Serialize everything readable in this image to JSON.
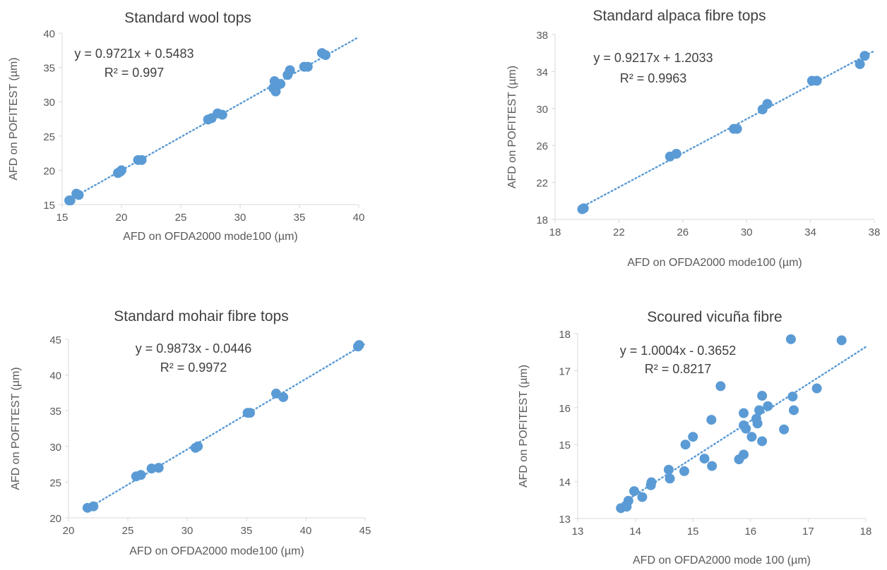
{
  "colors": {
    "point": "#5b9bd5",
    "trendline": "#5b9bd5",
    "axis": "#d9d9d9",
    "text": "#595959",
    "title": "#404040"
  },
  "chart_data": [
    {
      "type": "scatter",
      "title": "Standard wool tops",
      "xlabel": "AFD on OFDA2000 mode100 (µm)",
      "ylabel": "AFD on POFITEST (µm)",
      "xlim": [
        15,
        40
      ],
      "ylim": [
        15,
        40
      ],
      "xticks": [
        15,
        20,
        25,
        30,
        35,
        40
      ],
      "yticks": [
        15,
        20,
        25,
        30,
        35,
        40
      ],
      "grid": false,
      "trendline": {
        "slope": 0.9721,
        "intercept": 0.5483,
        "style": "dotted"
      },
      "equation": "y = 0.9721x + 0.5483",
      "r2": "R² = 0.997",
      "points": [
        [
          15.6,
          15.6
        ],
        [
          15.7,
          15.6
        ],
        [
          16.2,
          16.6
        ],
        [
          16.4,
          16.4
        ],
        [
          19.7,
          19.6
        ],
        [
          19.9,
          19.8
        ],
        [
          20.0,
          20.0
        ],
        [
          21.4,
          21.5
        ],
        [
          21.7,
          21.5
        ],
        [
          27.3,
          27.4
        ],
        [
          27.6,
          27.6
        ],
        [
          28.1,
          28.3
        ],
        [
          28.5,
          28.1
        ],
        [
          32.8,
          32.0
        ],
        [
          32.9,
          33.0
        ],
        [
          33.0,
          31.5
        ],
        [
          33.1,
          32.3
        ],
        [
          33.4,
          32.6
        ],
        [
          34.0,
          33.9
        ],
        [
          34.2,
          34.6
        ],
        [
          35.4,
          35.1
        ],
        [
          35.7,
          35.1
        ],
        [
          36.9,
          37.1
        ],
        [
          37.2,
          36.8
        ]
      ]
    },
    {
      "type": "scatter",
      "title": "Standard alpaca fibre tops",
      "xlabel": "AFD on OFDA2000 mode100 (µm)",
      "ylabel": "AFD on POFITEST (µm)",
      "xlim": [
        18,
        38
      ],
      "ylim": [
        18,
        38
      ],
      "xticks": [
        18,
        22,
        26,
        30,
        34,
        38
      ],
      "yticks": [
        18,
        22,
        26,
        30,
        34,
        38
      ],
      "grid": false,
      "trendline": {
        "slope": 0.9217,
        "intercept": 1.2033,
        "style": "dotted"
      },
      "equation": "y = 0.9217x + 1.2033",
      "r2": "R² = 0.9963",
      "points": [
        [
          19.7,
          19.1
        ],
        [
          19.8,
          19.2
        ],
        [
          25.2,
          24.8
        ],
        [
          25.6,
          25.1
        ],
        [
          29.2,
          27.8
        ],
        [
          29.4,
          27.8
        ],
        [
          31.0,
          29.9
        ],
        [
          31.3,
          30.5
        ],
        [
          34.1,
          33.0
        ],
        [
          34.4,
          33.0
        ],
        [
          37.1,
          34.8
        ],
        [
          37.4,
          35.7
        ]
      ]
    },
    {
      "type": "scatter",
      "title": "Standard mohair fibre tops",
      "xlabel": "AFD on OFDA2000 mode100 (µm)",
      "ylabel": "AFD on POFITEST (µm)",
      "xlim": [
        20,
        45
      ],
      "ylim": [
        20,
        45
      ],
      "xticks": [
        20,
        25,
        30,
        35,
        40,
        45
      ],
      "yticks": [
        20,
        25,
        30,
        35,
        40,
        45
      ],
      "grid": false,
      "trendline": {
        "slope": 0.9873,
        "intercept": -0.0446,
        "style": "dotted"
      },
      "equation": "y = 0.9873x - 0.0446",
      "r2": "R² = 0.9972",
      "points": [
        [
          21.6,
          21.4
        ],
        [
          22.1,
          21.6
        ],
        [
          25.7,
          25.8
        ],
        [
          26.1,
          26.0
        ],
        [
          27.0,
          26.9
        ],
        [
          27.6,
          27.0
        ],
        [
          30.7,
          29.8
        ],
        [
          30.9,
          30.0
        ],
        [
          35.1,
          34.7
        ],
        [
          35.3,
          34.7
        ],
        [
          37.5,
          37.4
        ],
        [
          38.1,
          36.9
        ],
        [
          44.4,
          44.0
        ],
        [
          44.5,
          44.2
        ]
      ]
    },
    {
      "type": "scatter",
      "title": "Scoured vicuña fibre",
      "xlabel": "AFD on OFDA2000 mode 100 (µm)",
      "ylabel": "AFD on POFITEST (µm)",
      "xlim": [
        13,
        18
      ],
      "ylim": [
        13,
        18
      ],
      "xticks": [
        13,
        14,
        15,
        16,
        17,
        18
      ],
      "yticks": [
        13,
        14,
        15,
        16,
        17,
        18
      ],
      "grid": false,
      "trendline": {
        "slope": 1.0004,
        "intercept": -0.3652,
        "style": "dotted"
      },
      "equation": "y = 1.0004x - 0.3652",
      "r2": "R² = 0.8217",
      "points": [
        [
          13.75,
          13.28
        ],
        [
          13.85,
          13.32
        ],
        [
          13.88,
          13.48
        ],
        [
          13.98,
          13.74
        ],
        [
          14.12,
          13.58
        ],
        [
          14.27,
          13.9
        ],
        [
          14.28,
          13.98
        ],
        [
          14.58,
          14.32
        ],
        [
          14.6,
          14.08
        ],
        [
          14.85,
          14.28
        ],
        [
          14.87,
          15.0
        ],
        [
          15.0,
          15.21
        ],
        [
          15.2,
          14.62
        ],
        [
          15.32,
          15.67
        ],
        [
          15.33,
          14.42
        ],
        [
          15.48,
          16.58
        ],
        [
          15.8,
          14.6
        ],
        [
          15.88,
          14.73
        ],
        [
          15.88,
          15.85
        ],
        [
          15.88,
          15.52
        ],
        [
          15.92,
          15.43
        ],
        [
          16.02,
          15.21
        ],
        [
          16.1,
          15.7
        ],
        [
          16.12,
          15.57
        ],
        [
          16.15,
          15.93
        ],
        [
          16.2,
          16.32
        ],
        [
          16.2,
          15.09
        ],
        [
          16.3,
          16.04
        ],
        [
          16.58,
          15.41
        ],
        [
          16.7,
          17.85
        ],
        [
          16.73,
          16.3
        ],
        [
          16.75,
          15.93
        ],
        [
          17.15,
          16.52
        ],
        [
          17.58,
          17.82
        ]
      ]
    }
  ]
}
